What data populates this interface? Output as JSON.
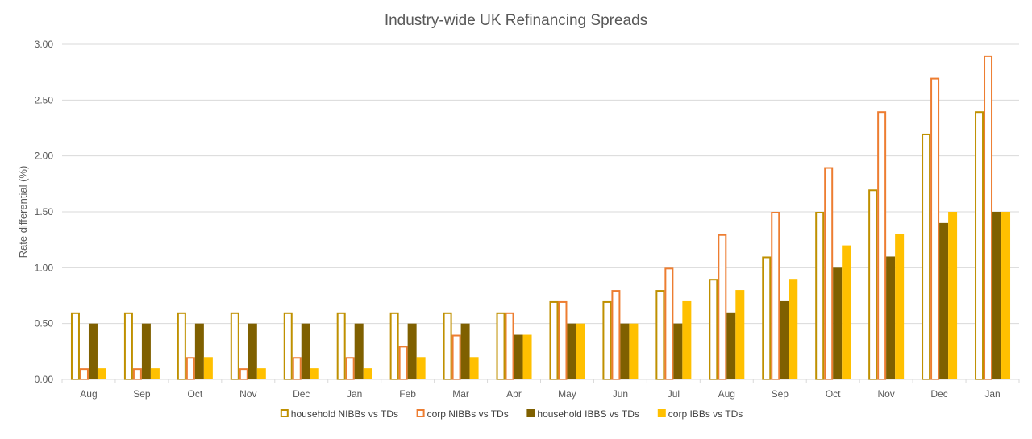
{
  "chart_data": {
    "type": "bar",
    "title": "Industry-wide UK Refinancing Spreads",
    "xlabel": "",
    "ylabel": "Rate differential (%)",
    "ylim": [
      0,
      3
    ],
    "yticks": [
      "0.00",
      "0.50",
      "1.00",
      "1.50",
      "2.00",
      "2.50",
      "3.00"
    ],
    "grid": true,
    "legend_position": "bottom",
    "categories": [
      "Aug",
      "Sep",
      "Oct",
      "Nov",
      "Dec",
      "Jan",
      "Feb",
      "Mar",
      "Apr",
      "May",
      "Jun",
      "Jul",
      "Aug",
      "Sep",
      "Oct",
      "Nov",
      "Dec",
      "Jan"
    ],
    "series": [
      {
        "name": "household NIBBs vs TDs",
        "style": "outline",
        "color": "#BF9000",
        "values": [
          0.6,
          0.6,
          0.6,
          0.6,
          0.6,
          0.6,
          0.6,
          0.6,
          0.6,
          0.7,
          0.7,
          0.8,
          0.9,
          1.1,
          1.5,
          1.7,
          2.2,
          2.4
        ]
      },
      {
        "name": "corp NIBBs vs TDs",
        "style": "outline",
        "color": "#ED7D31",
        "values": [
          0.1,
          0.1,
          0.2,
          0.1,
          0.2,
          0.2,
          0.3,
          0.4,
          0.6,
          0.7,
          0.8,
          1.0,
          1.3,
          1.5,
          1.9,
          2.4,
          2.7,
          2.9
        ]
      },
      {
        "name": "household IBBS vs TDs",
        "style": "solid",
        "color": "#7F6000",
        "values": [
          0.5,
          0.5,
          0.5,
          0.5,
          0.5,
          0.5,
          0.5,
          0.5,
          0.4,
          0.5,
          0.5,
          0.5,
          0.6,
          0.7,
          1.0,
          1.1,
          1.4,
          1.5
        ]
      },
      {
        "name": "corp IBBs vs TDs",
        "style": "solid",
        "color": "#FFC000",
        "values": [
          0.1,
          0.1,
          0.2,
          0.1,
          0.1,
          0.1,
          0.2,
          0.2,
          0.4,
          0.5,
          0.5,
          0.7,
          0.8,
          0.9,
          1.2,
          1.3,
          1.5,
          1.5
        ]
      }
    ]
  }
}
